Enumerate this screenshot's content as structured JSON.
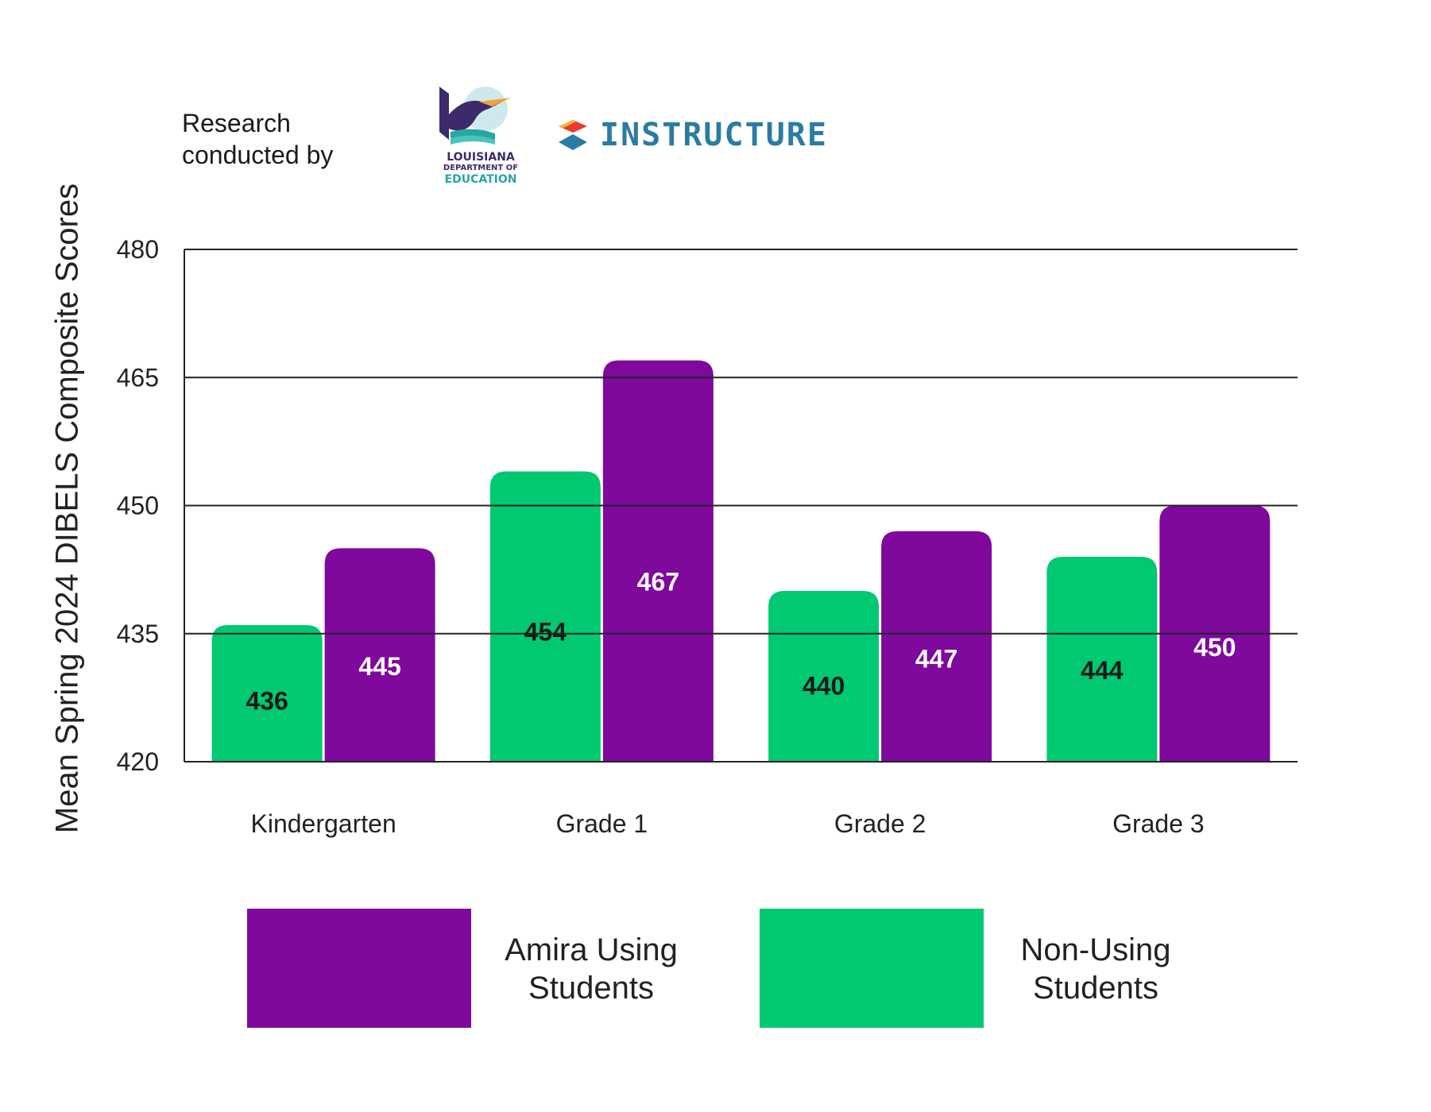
{
  "credit": {
    "line1": "Research",
    "line2": "conducted by",
    "logos": [
      {
        "icon": "louisiana-pelican-logo",
        "lines": [
          "LOUISIANA",
          "DEPARTMENT OF",
          "EDUCATION"
        ]
      },
      {
        "icon": "instructure-logo",
        "text": "INSTRUCTURE"
      }
    ]
  },
  "chart_data": {
    "type": "bar",
    "title": "",
    "xlabel": "",
    "ylabel": "Mean Spring 2024 DIBELS Composite Scores",
    "ylim": [
      420,
      480
    ],
    "yticks": [
      420,
      435,
      450,
      465,
      480
    ],
    "grid": true,
    "legend_position": "bottom",
    "categories": [
      "Kindergarten",
      "Grade 1",
      "Grade 2",
      "Grade 3"
    ],
    "series": [
      {
        "name": "Non-Using Students",
        "values": [
          436,
          454,
          440,
          444
        ],
        "color": "#00c972",
        "label_color": "#1a1a1a"
      },
      {
        "name": "Amira Using Students",
        "values": [
          445,
          467,
          447,
          450
        ],
        "color": "#7f089d",
        "label_color": "#ffffff"
      }
    ]
  },
  "legend": [
    {
      "line1": "Amira Using",
      "line2": "Students",
      "color": "#7f089d"
    },
    {
      "line1": "Non-Using",
      "line2": "Students",
      "color": "#00c972"
    }
  ]
}
